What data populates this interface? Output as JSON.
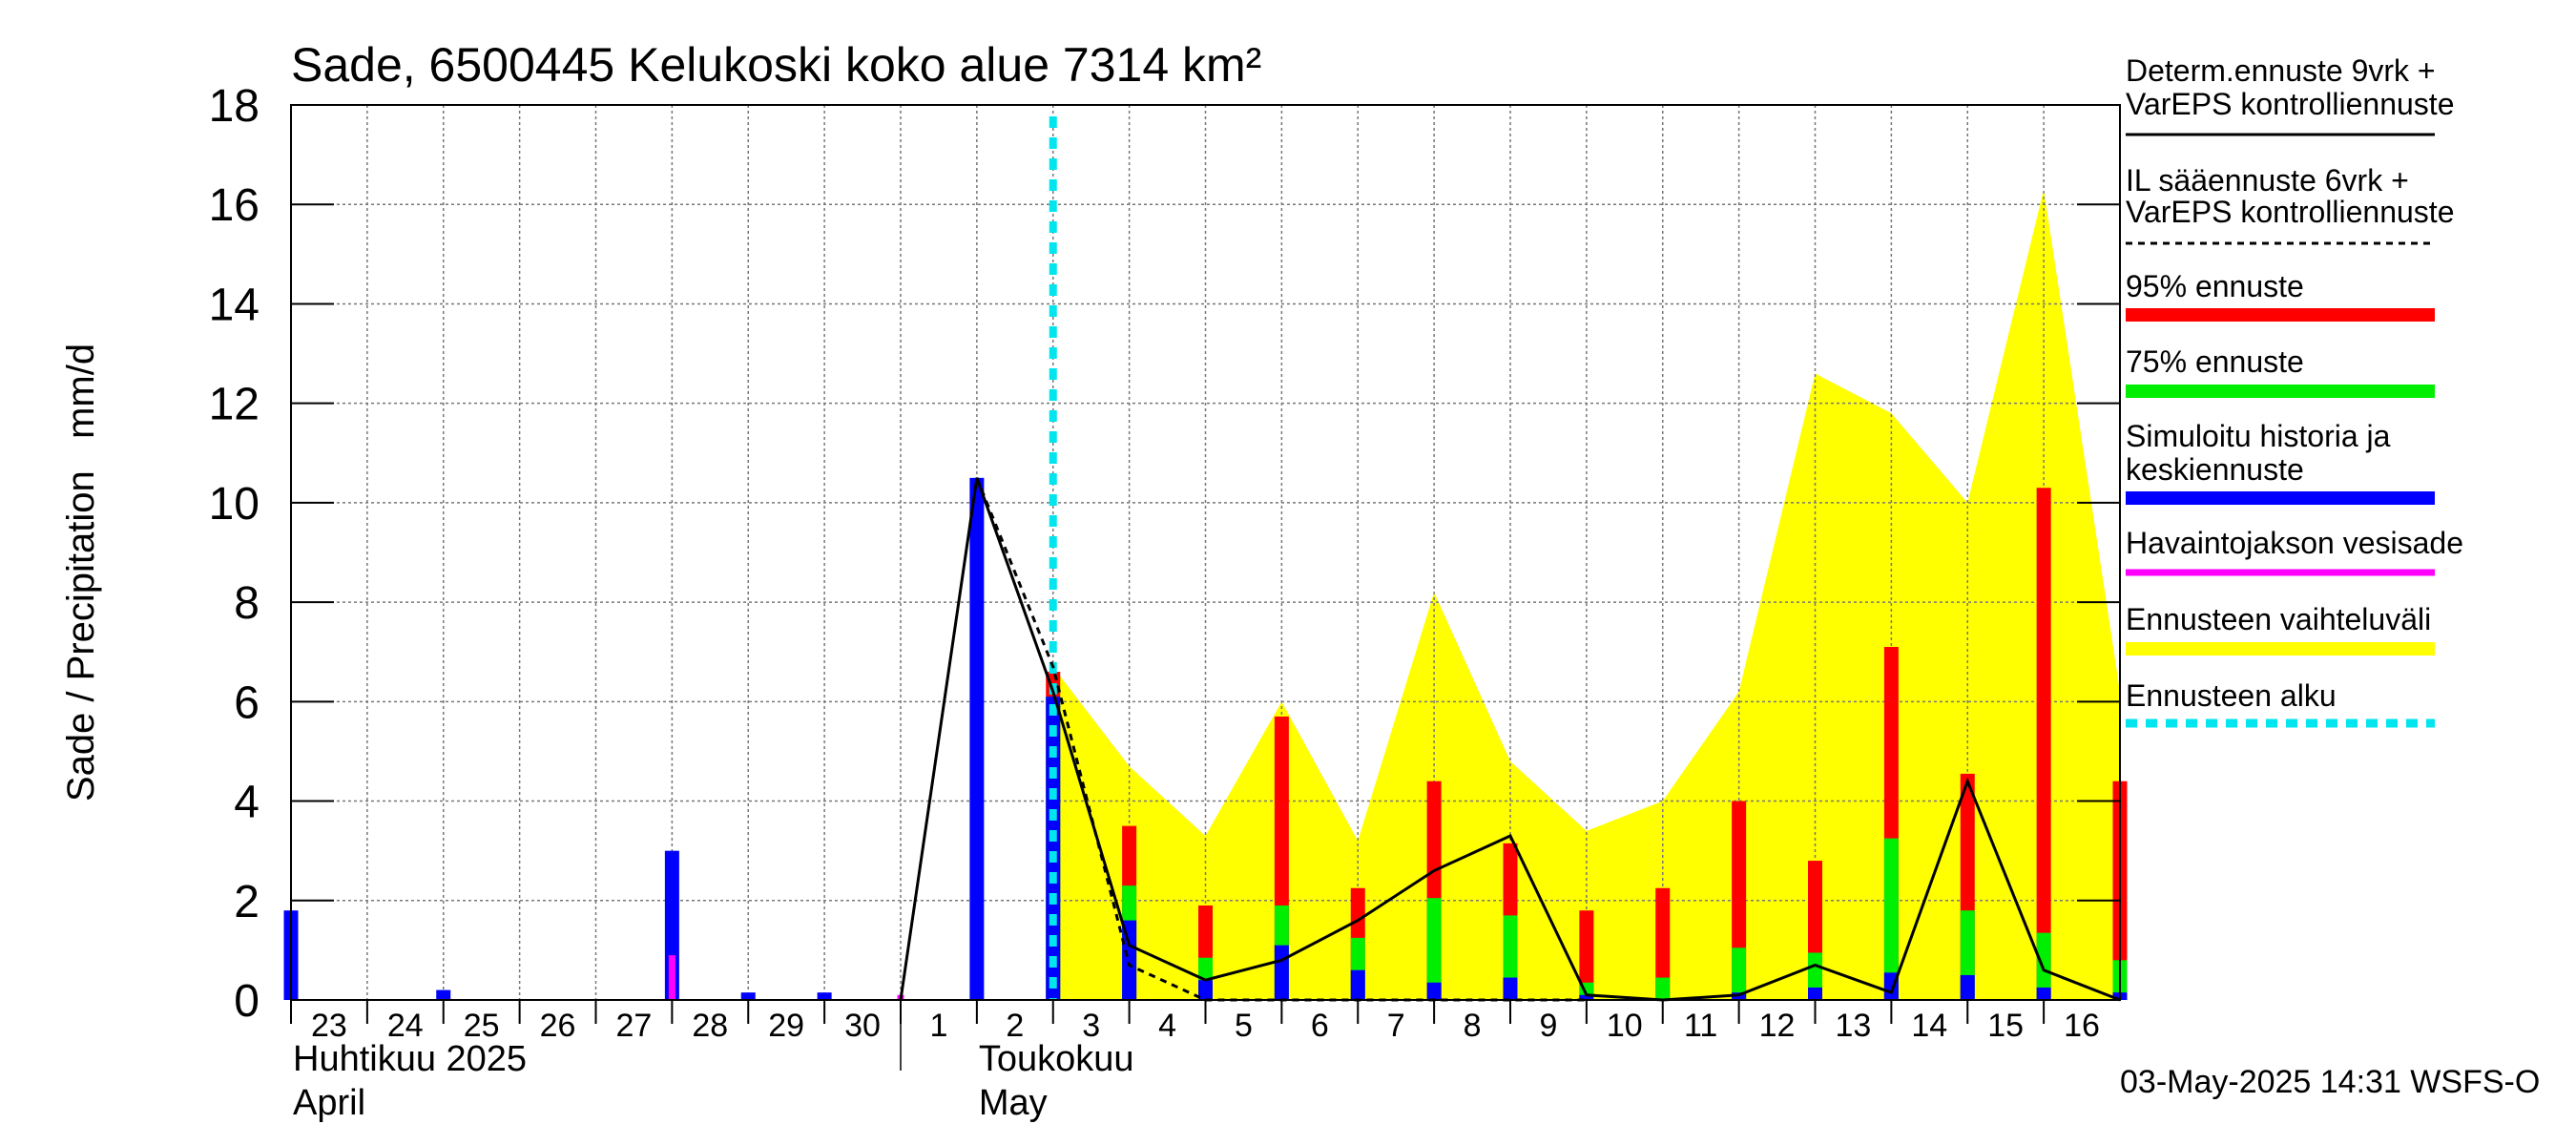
{
  "chart_data": {
    "type": "bar",
    "title": "Sade, 6500445 Kelukoski koko alue 7314 km²",
    "ylabel": "Sade / Precipitation   mm/d",
    "ylim": [
      0,
      18
    ],
    "yticks": [
      0,
      2,
      4,
      6,
      8,
      10,
      12,
      14,
      16,
      18
    ],
    "grid": true,
    "days": [
      "23",
      "24",
      "25",
      "26",
      "27",
      "28",
      "29",
      "30",
      "1",
      "2",
      "3",
      "4",
      "5",
      "6",
      "7",
      "8",
      "9",
      "10",
      "11",
      "12",
      "13",
      "14",
      "15",
      "16"
    ],
    "month_labels": [
      {
        "line1": "Huhtikuu  2025",
        "line2": "April",
        "day_index": 0
      },
      {
        "line1": "Toukokuu",
        "line2": "May",
        "day_index": 9
      }
    ],
    "forecast_start_day_index": 10,
    "observed_precip": [
      0,
      0,
      0,
      0,
      0,
      0.9,
      0,
      0,
      0.1,
      0,
      0,
      0,
      0,
      0,
      0,
      0,
      0,
      0,
      0,
      0,
      0,
      0,
      0,
      0
    ],
    "simulated_mean": [
      1.8,
      0,
      0.2,
      0,
      0,
      3.0,
      0.15,
      0.15,
      0,
      10.5,
      6.1,
      1.6,
      0.4,
      1.1,
      0.6,
      0.35,
      0.45,
      0.1,
      0,
      0.15,
      0.25,
      0.55,
      0.5,
      0.25,
      0.15
    ],
    "p75": [
      null,
      null,
      null,
      null,
      null,
      null,
      null,
      null,
      null,
      null,
      6.1,
      2.3,
      0.85,
      1.9,
      1.25,
      2.05,
      1.7,
      0.35,
      0.45,
      1.05,
      0.95,
      3.25,
      1.8,
      1.35,
      0.8
    ],
    "p95": [
      null,
      null,
      null,
      null,
      null,
      null,
      null,
      null,
      null,
      null,
      6.6,
      3.5,
      1.9,
      5.7,
      2.25,
      4.4,
      3.15,
      1.8,
      2.25,
      4.0,
      2.8,
      7.1,
      4.55,
      10.3,
      4.4
    ],
    "ensemble_range_max": [
      6.7,
      4.7,
      3.3,
      6.0,
      3.2,
      8.2,
      4.8,
      3.4,
      4.0,
      6.2,
      12.6,
      11.8,
      10.0,
      16.3,
      6.2
    ],
    "ensemble_range_x_start_index": 10,
    "determ_forecast": [
      0,
      10.5,
      6.2,
      1.1,
      0.4,
      0.8,
      1.6,
      2.6,
      3.3,
      0.1,
      0,
      0.1,
      0.7,
      0.15,
      4.4,
      0.6,
      0
    ],
    "determ_x_start_index": 8,
    "il_forecast": [
      10.5,
      6.7,
      0.7,
      0,
      0,
      0,
      0,
      0,
      0
    ],
    "il_x_start_index": 9,
    "colors": {
      "p95": "#ff0000",
      "p75": "#00ee00",
      "mean": "#0000ff",
      "observed": "#ff00ff",
      "range": "#ffff00",
      "forecast_start": "#00e5ee",
      "line": "#000000"
    },
    "legend": [
      {
        "label1": "Determ.ennuste 9vrk +",
        "label2": "VarEPS kontrolliennuste",
        "style": "solid"
      },
      {
        "label1": "IL sääennuste 6vrk  +",
        "label2": "  VarEPS kontrolliennuste",
        "style": "dashed"
      },
      {
        "label1": "95% ennuste",
        "label2": "",
        "style": "bar-red"
      },
      {
        "label1": "75% ennuste",
        "label2": "",
        "style": "bar-green"
      },
      {
        "label1": "Simuloitu historia ja",
        "label2": "keskiennuste",
        "style": "bar-blue"
      },
      {
        "label1": "Havaintojakson vesisade",
        "label2": "",
        "style": "bar-magenta"
      },
      {
        "label1": "Ennusteen vaihteluväli",
        "label2": "",
        "style": "bar-yellow"
      },
      {
        "label1": "Ennusteen alku",
        "label2": "",
        "style": "dashed-cyan"
      }
    ],
    "footer": "03-May-2025 14:31 WSFS-O"
  }
}
